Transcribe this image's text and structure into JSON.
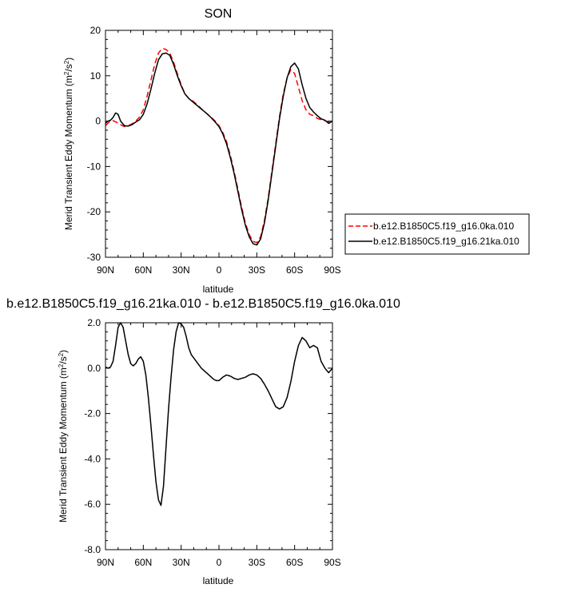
{
  "chart_data": [
    {
      "type": "line",
      "title": "SON",
      "xlabel": "latitude",
      "ylabel": "Merid Transient Eddy Momentum (m",
      "ylabel_unit_tail": "/s",
      "ylabel_sup": "2",
      "ylabel_close": ")",
      "x_ticklabels": [
        "90N",
        "60N",
        "30N",
        "0",
        "30S",
        "60S",
        "90S"
      ],
      "x_tick_values": [
        90,
        60,
        30,
        0,
        -30,
        -60,
        -90
      ],
      "xlim": [
        90,
        -90
      ],
      "ylim": [
        -30,
        20
      ],
      "y_ticks": [
        -30,
        -20,
        -10,
        0,
        10,
        20
      ],
      "y_ticklabels": [
        "-30",
        "-20",
        "-10",
        "0",
        "10",
        "20"
      ],
      "grid": false,
      "legend_position": "right",
      "series": [
        {
          "name": "b.e12.B1850C5.f19_g16.0ka.010",
          "color": "#ff0000",
          "dash": "dashed",
          "x": [
            90,
            87,
            84,
            81,
            78,
            75,
            72,
            69,
            66,
            63,
            60,
            57,
            54,
            51,
            48,
            45,
            42,
            39,
            36,
            33,
            30,
            27,
            24,
            21,
            18,
            15,
            12,
            9,
            6,
            3,
            0,
            -3,
            -6,
            -9,
            -12,
            -15,
            -18,
            -21,
            -24,
            -27,
            -30,
            -33,
            -36,
            -39,
            -42,
            -45,
            -48,
            -51,
            -54,
            -57,
            -60,
            -63,
            -66,
            -69,
            -72,
            -75,
            -78,
            -81,
            -84,
            -87,
            -90
          ],
          "y": [
            -1.0,
            -0.2,
            0.1,
            -0.3,
            -0.8,
            -1.2,
            -1.0,
            -0.6,
            0.0,
            0.9,
            2.5,
            5.5,
            9.0,
            12.5,
            15.0,
            16.0,
            15.8,
            15.0,
            13.0,
            10.5,
            8.0,
            6.0,
            5.0,
            4.5,
            3.8,
            3.0,
            2.2,
            1.5,
            0.8,
            0.0,
            -1.0,
            -2.5,
            -4.5,
            -7.5,
            -11.0,
            -15.0,
            -19.0,
            -22.5,
            -25.0,
            -26.5,
            -26.8,
            -25.5,
            -22.0,
            -17.0,
            -11.0,
            -5.0,
            1.0,
            6.0,
            9.5,
            11.3,
            10.5,
            7.5,
            4.5,
            2.5,
            1.5,
            1.2,
            0.6,
            0.3,
            0.1,
            -0.2,
            -0.3
          ]
        },
        {
          "name": "b.e12.B1850C5.f19_g16.21ka.010",
          "color": "#000000",
          "dash": "solid",
          "x": [
            90,
            88,
            86,
            84,
            82,
            80,
            78,
            75,
            72,
            69,
            66,
            63,
            60,
            57,
            54,
            51,
            48,
            45,
            42,
            39,
            36,
            33,
            30,
            27,
            24,
            21,
            18,
            15,
            12,
            9,
            6,
            3,
            0,
            -3,
            -6,
            -9,
            -12,
            -15,
            -18,
            -21,
            -24,
            -27,
            -30,
            -33,
            -36,
            -39,
            -42,
            -45,
            -48,
            -51,
            -54,
            -57,
            -60,
            -63,
            -66,
            -69,
            -72,
            -75,
            -78,
            -81,
            -84,
            -87,
            -90
          ],
          "y": [
            -0.5,
            0.0,
            0.2,
            0.8,
            1.8,
            1.5,
            0.0,
            -1.0,
            -1.1,
            -0.8,
            -0.2,
            0.3,
            1.5,
            3.8,
            7.0,
            10.5,
            13.5,
            14.8,
            15.0,
            14.5,
            12.5,
            10.0,
            7.8,
            6.0,
            5.0,
            4.3,
            3.6,
            2.9,
            2.2,
            1.5,
            0.7,
            -0.2,
            -1.2,
            -2.8,
            -5.0,
            -8.0,
            -11.5,
            -15.5,
            -19.5,
            -23.0,
            -25.5,
            -27.0,
            -27.3,
            -26.0,
            -22.5,
            -17.5,
            -11.5,
            -5.5,
            0.5,
            5.5,
            9.5,
            12.0,
            12.8,
            11.5,
            8.0,
            5.0,
            3.0,
            2.0,
            1.2,
            0.5,
            0.2,
            -0.5,
            0.0
          ]
        }
      ]
    },
    {
      "type": "line",
      "title": "b.e12.B1850C5.f19_g16.21ka.010 - b.e12.B1850C5.f19_g16.0ka.010",
      "xlabel": "latitude",
      "ylabel": "Merid Transient Eddy Momentum (m",
      "ylabel_unit_tail": "/s",
      "ylabel_sup": "2",
      "ylabel_close": ")",
      "x_ticklabels": [
        "90N",
        "60N",
        "30N",
        "0",
        "30S",
        "60S",
        "90S"
      ],
      "x_tick_values": [
        90,
        60,
        30,
        0,
        -30,
        -60,
        -90
      ],
      "xlim": [
        90,
        -90
      ],
      "ylim": [
        -8.0,
        2.0
      ],
      "y_ticks": [
        -8,
        -6,
        -4,
        -2,
        0,
        2
      ],
      "y_ticklabels": [
        "-8.0",
        "-6.0",
        "-4.0",
        "-2.0",
        "0.0",
        "2.0"
      ],
      "grid": false,
      "series": [
        {
          "name": "",
          "color": "#000000",
          "dash": "solid",
          "x": [
            90,
            88,
            86,
            84,
            82,
            80,
            78,
            76,
            74,
            72,
            70,
            68,
            66,
            64,
            62,
            60,
            58,
            56,
            54,
            52,
            50,
            48,
            46,
            44,
            42,
            40,
            38,
            36,
            34,
            32,
            30,
            28,
            26,
            24,
            22,
            20,
            18,
            16,
            14,
            12,
            10,
            8,
            6,
            4,
            2,
            0,
            -3,
            -6,
            -9,
            -12,
            -15,
            -18,
            -21,
            -24,
            -27,
            -30,
            -33,
            -36,
            -39,
            -42,
            -45,
            -48,
            -51,
            -54,
            -57,
            -60,
            -63,
            -66,
            -69,
            -72,
            -75,
            -78,
            -81,
            -84,
            -87,
            -90
          ],
          "y": [
            0.05,
            0.0,
            0.05,
            0.3,
            1.0,
            1.8,
            2.0,
            1.8,
            1.2,
            0.6,
            0.2,
            0.1,
            0.2,
            0.4,
            0.5,
            0.3,
            -0.3,
            -1.3,
            -2.5,
            -3.8,
            -5.0,
            -5.8,
            -6.05,
            -5.2,
            -3.5,
            -1.8,
            -0.4,
            0.8,
            1.6,
            2.0,
            1.95,
            1.8,
            1.4,
            0.9,
            0.6,
            0.45,
            0.3,
            0.15,
            0.0,
            -0.1,
            -0.2,
            -0.3,
            -0.4,
            -0.5,
            -0.55,
            -0.55,
            -0.4,
            -0.3,
            -0.35,
            -0.45,
            -0.5,
            -0.45,
            -0.4,
            -0.3,
            -0.25,
            -0.3,
            -0.45,
            -0.7,
            -1.0,
            -1.35,
            -1.7,
            -1.8,
            -1.7,
            -1.3,
            -0.6,
            0.3,
            1.0,
            1.35,
            1.2,
            0.9,
            1.0,
            0.9,
            0.3,
            0.0,
            -0.2,
            0.0
          ]
        }
      ]
    }
  ]
}
